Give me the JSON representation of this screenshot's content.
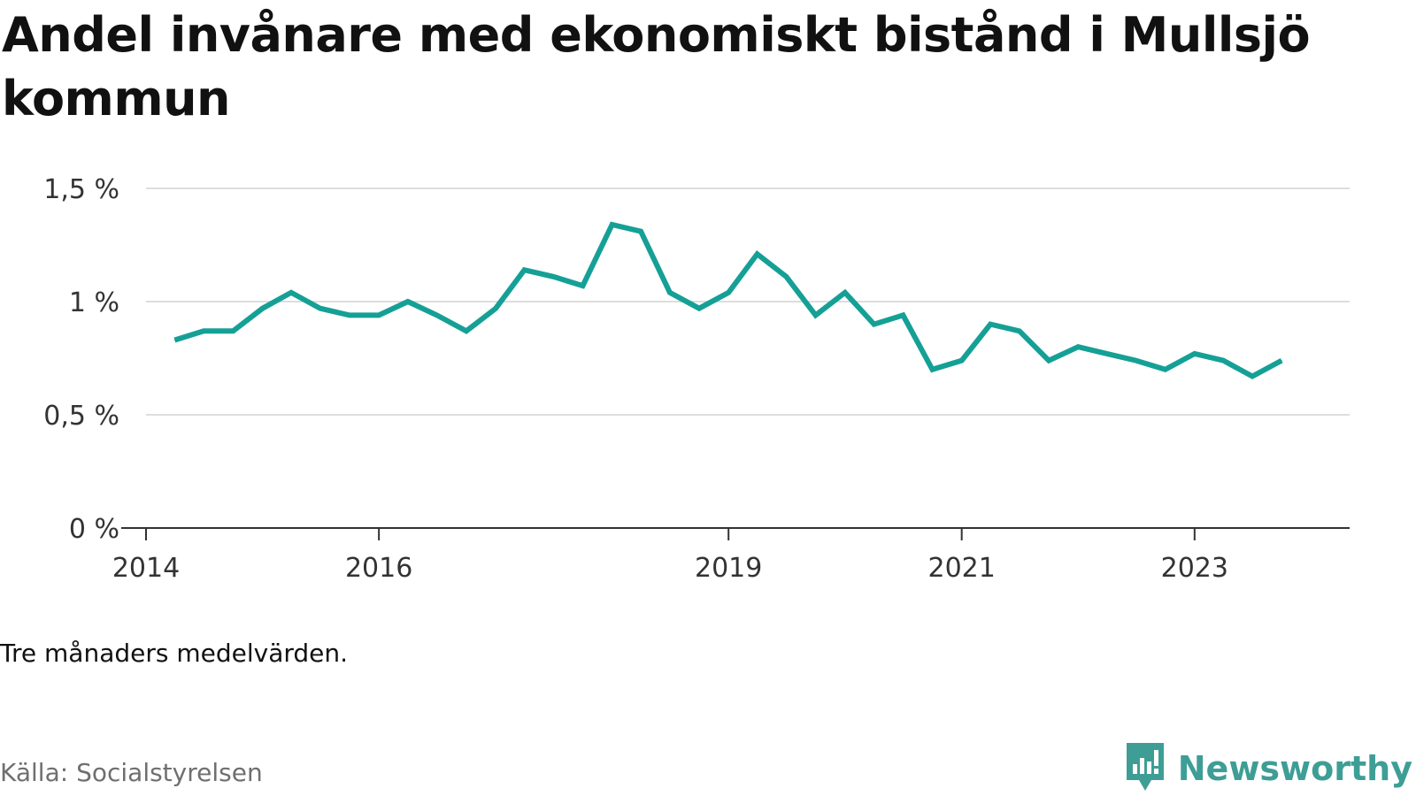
{
  "title": "Andel invånare med ekonomiskt bistånd i Mullsjö kommun",
  "note": "Tre månaders medelvärden.",
  "source": "Källa: Socialstyrelsen",
  "brand": {
    "name": "Newsworthy",
    "icon": "newsworthy-logo-icon"
  },
  "colors": {
    "line": "#15a096",
    "grid": "#dddddd",
    "axis": "#333333"
  },
  "chart_data": {
    "type": "line",
    "title": "Andel invånare med ekonomiskt bistånd i Mullsjö kommun",
    "xlabel": "",
    "ylabel": "",
    "ylim": [
      0,
      0.015
    ],
    "xlim": [
      "2014-01-01",
      "2024-05-01"
    ],
    "grid": true,
    "y_ticks": [
      {
        "value": 0,
        "label": "0 %"
      },
      {
        "value": 0.005,
        "label": "0,5 %"
      },
      {
        "value": 0.01,
        "label": "1 %"
      },
      {
        "value": 0.015,
        "label": "1,5 %"
      }
    ],
    "x_ticks": [
      {
        "value": "2014-01-01",
        "label": "2014"
      },
      {
        "value": "2016-01-01",
        "label": "2016"
      },
      {
        "value": "2019-01-01",
        "label": "2019"
      },
      {
        "value": "2021-01-01",
        "label": "2021"
      },
      {
        "value": "2023-01-01",
        "label": "2023"
      }
    ],
    "series": [
      {
        "values": [
          {
            "x": "2014-04-01",
            "y": 0.0083
          },
          {
            "x": "2014-07-01",
            "y": 0.0087
          },
          {
            "x": "2014-10-01",
            "y": 0.0087
          },
          {
            "x": "2015-01-01",
            "y": 0.0097
          },
          {
            "x": "2015-04-01",
            "y": 0.0104
          },
          {
            "x": "2015-07-01",
            "y": 0.0097
          },
          {
            "x": "2015-10-01",
            "y": 0.0094
          },
          {
            "x": "2016-01-01",
            "y": 0.0094
          },
          {
            "x": "2016-04-01",
            "y": 0.01
          },
          {
            "x": "2016-07-01",
            "y": 0.0094
          },
          {
            "x": "2016-10-01",
            "y": 0.0087
          },
          {
            "x": "2017-01-01",
            "y": 0.0097
          },
          {
            "x": "2017-04-01",
            "y": 0.0114
          },
          {
            "x": "2017-07-01",
            "y": 0.0111
          },
          {
            "x": "2017-10-01",
            "y": 0.0107
          },
          {
            "x": "2018-01-01",
            "y": 0.0134
          },
          {
            "x": "2018-04-01",
            "y": 0.0131
          },
          {
            "x": "2018-07-01",
            "y": 0.0104
          },
          {
            "x": "2018-10-01",
            "y": 0.0097
          },
          {
            "x": "2019-01-01",
            "y": 0.0104
          },
          {
            "x": "2019-04-01",
            "y": 0.0121
          },
          {
            "x": "2019-07-01",
            "y": 0.0111
          },
          {
            "x": "2019-10-01",
            "y": 0.0094
          },
          {
            "x": "2020-01-01",
            "y": 0.0104
          },
          {
            "x": "2020-04-01",
            "y": 0.009
          },
          {
            "x": "2020-07-01",
            "y": 0.0094
          },
          {
            "x": "2020-10-01",
            "y": 0.007
          },
          {
            "x": "2021-01-01",
            "y": 0.0074
          },
          {
            "x": "2021-04-01",
            "y": 0.009
          },
          {
            "x": "2021-07-01",
            "y": 0.0087
          },
          {
            "x": "2021-10-01",
            "y": 0.0074
          },
          {
            "x": "2022-01-01",
            "y": 0.008
          },
          {
            "x": "2022-04-01",
            "y": 0.0077
          },
          {
            "x": "2022-07-01",
            "y": 0.0074
          },
          {
            "x": "2022-10-01",
            "y": 0.007
          },
          {
            "x": "2023-01-01",
            "y": 0.0077
          },
          {
            "x": "2023-04-01",
            "y": 0.0074
          },
          {
            "x": "2023-07-01",
            "y": 0.0067
          },
          {
            "x": "2023-10-01",
            "y": 0.0074
          }
        ]
      }
    ]
  }
}
